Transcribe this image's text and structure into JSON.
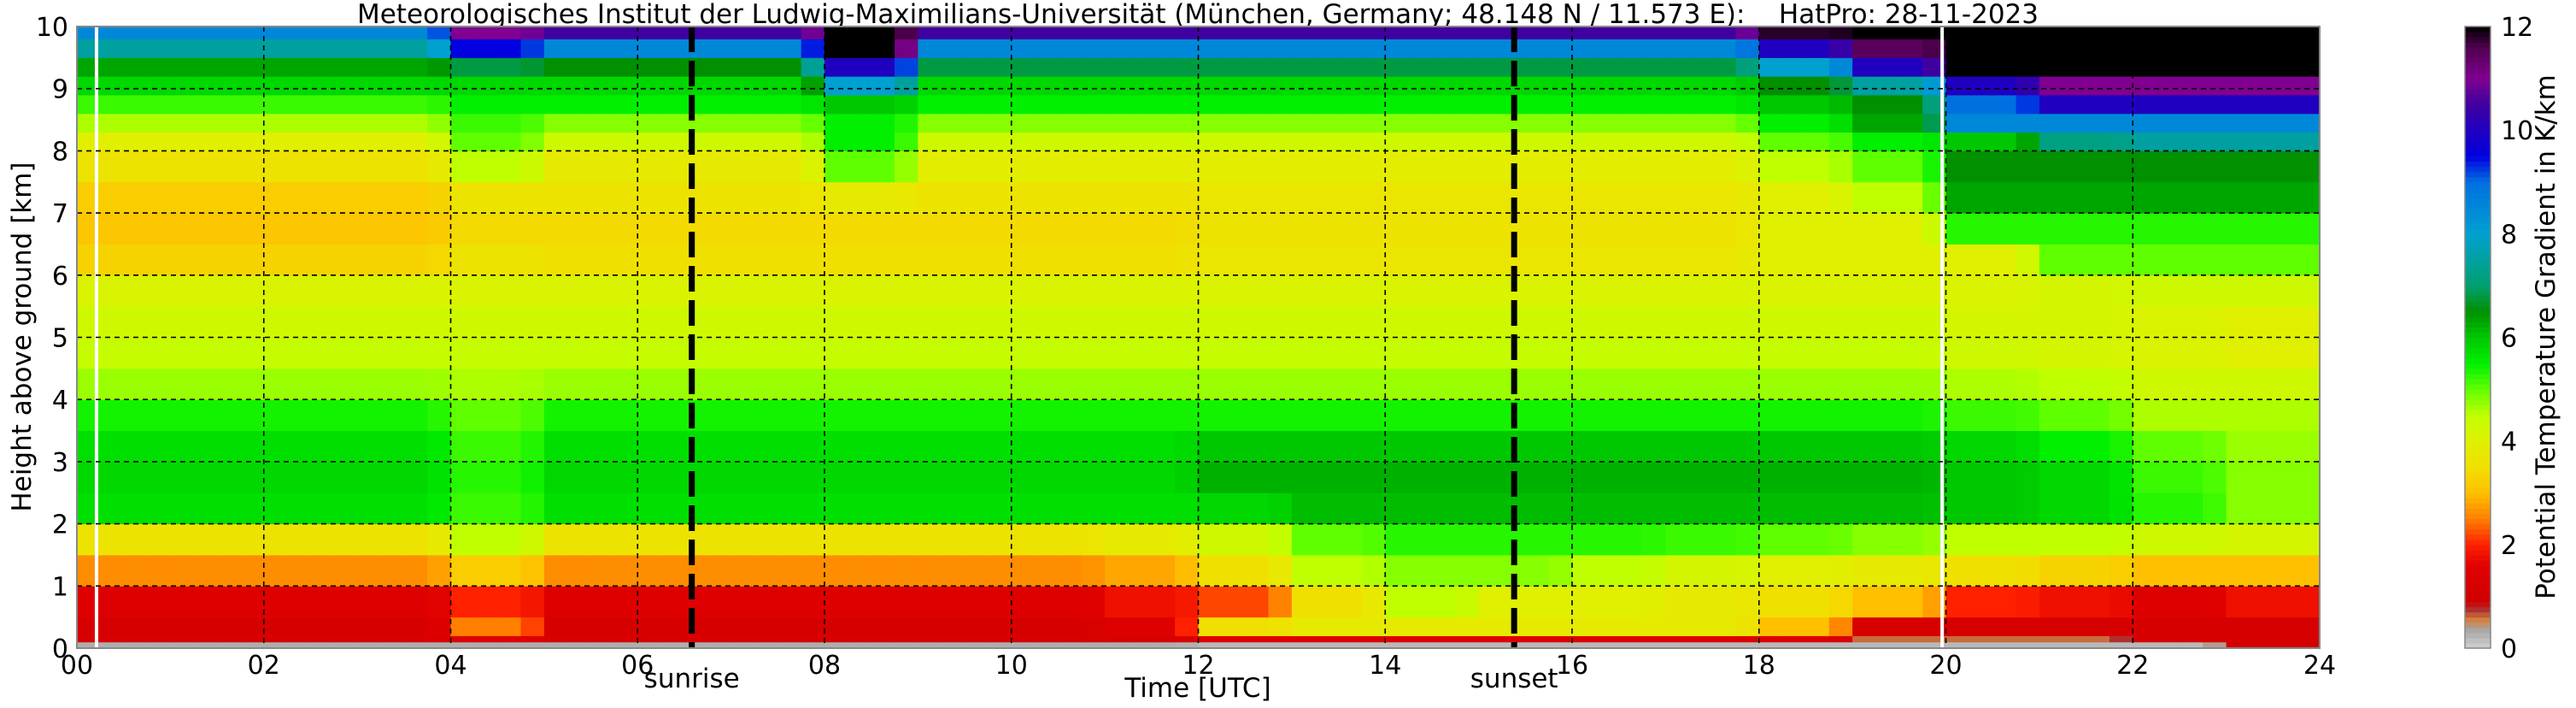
{
  "chart_data": {
    "type": "heatmap",
    "title": "Meteorologisches Institut der Ludwig-Maximilians-Universität (München, Germany; 48.148 N / 11.573 E):    HatPro: 28-11-2023",
    "xlabel": "Time [UTC]",
    "ylabel": "Height above ground [km]",
    "colorbar_label": "Potential Temperature Gradient in K/km",
    "xlim": [
      0,
      24
    ],
    "ylim": [
      0,
      10
    ],
    "clim": [
      0,
      12
    ],
    "grid": true,
    "x_ticks": [
      "00",
      "02",
      "04",
      "06",
      "08",
      "10",
      "12",
      "14",
      "16",
      "18",
      "20",
      "22",
      "24"
    ],
    "y_ticks": [
      "0",
      "1",
      "2",
      "3",
      "4",
      "5",
      "6",
      "7",
      "8",
      "9",
      "10"
    ],
    "colorbar_ticks": [
      "0",
      "2",
      "4",
      "6",
      "8",
      "10",
      "12"
    ],
    "annotations": [
      {
        "label": "sunrise",
        "time_hours": 6.58
      },
      {
        "label": "sunset",
        "time_hours": 15.38
      }
    ],
    "data_gaps_hours": [
      0.21,
      19.96
    ],
    "x_hours": [
      0,
      1,
      2,
      3,
      4,
      5,
      6,
      7,
      8,
      9,
      10,
      11,
      12,
      13,
      14,
      15,
      16,
      17,
      18,
      19,
      20,
      21,
      22,
      23
    ],
    "height_bin_edges_km": [
      0,
      0.1,
      0.2,
      0.5,
      1.0,
      1.5,
      2.0,
      2.5,
      3.0,
      3.5,
      4.0,
      4.5,
      5.0,
      5.5,
      6.0,
      6.5,
      7.0,
      7.5,
      8.0,
      8.3,
      8.6,
      8.9,
      9.2,
      9.5,
      9.8,
      10
    ],
    "values": [
      [
        0.3,
        0.3,
        0.3,
        0.3,
        0.3,
        0.3,
        0.3,
        0.3,
        0.3,
        0.3,
        0.3,
        0.3,
        0.2,
        0.2,
        0.2,
        0.2,
        0.2,
        0.2,
        0.2,
        0.2,
        0.2,
        0.2,
        0.2,
        1.0
      ],
      [
        1.3,
        1.3,
        1.3,
        1.3,
        1.5,
        1.3,
        1.3,
        1.3,
        1.3,
        1.3,
        1.3,
        1.3,
        1.5,
        1.5,
        1.5,
        1.5,
        1.5,
        1.5,
        1.5,
        0.6,
        0.6,
        0.6,
        1.2,
        1.2
      ],
      [
        1.2,
        1.2,
        1.2,
        1.2,
        2.5,
        1.2,
        1.2,
        1.2,
        1.2,
        1.2,
        1.2,
        1.5,
        3.5,
        3.8,
        3.8,
        3.8,
        3.8,
        3.8,
        3.0,
        1.2,
        1.2,
        1.2,
        1.2,
        1.2
      ],
      [
        1.5,
        1.5,
        1.5,
        1.5,
        2.0,
        1.5,
        1.5,
        1.5,
        1.5,
        1.5,
        1.5,
        1.8,
        2.2,
        3.5,
        4.5,
        4.0,
        4.0,
        3.8,
        3.5,
        3.0,
        2.0,
        1.8,
        1.5,
        1.8
      ],
      [
        2.6,
        2.6,
        2.6,
        2.6,
        3.2,
        2.6,
        2.6,
        2.6,
        2.6,
        2.6,
        2.6,
        2.8,
        3.5,
        4.5,
        4.8,
        4.8,
        4.5,
        4.2,
        4.0,
        3.8,
        3.5,
        3.3,
        3.0,
        3.0
      ],
      [
        3.6,
        3.6,
        3.6,
        3.6,
        4.5,
        3.6,
        3.6,
        3.6,
        3.6,
        3.6,
        3.6,
        3.8,
        4.3,
        5.0,
        5.3,
        5.3,
        5.3,
        5.2,
        5.0,
        4.8,
        4.5,
        4.5,
        4.3,
        4.2
      ],
      [
        5.7,
        5.7,
        5.7,
        5.7,
        5.2,
        5.7,
        5.7,
        5.7,
        5.7,
        5.7,
        5.7,
        5.7,
        5.8,
        6.1,
        6.1,
        6.1,
        6.1,
        6.1,
        6.1,
        6.1,
        6.0,
        5.8,
        5.3,
        4.8
      ],
      [
        5.8,
        5.8,
        5.8,
        5.8,
        5.3,
        5.8,
        5.8,
        5.8,
        5.8,
        5.8,
        5.8,
        5.8,
        6.2,
        6.2,
        6.2,
        6.2,
        6.2,
        6.2,
        6.2,
        6.2,
        6.0,
        5.8,
        5.2,
        4.8
      ],
      [
        5.7,
        5.7,
        5.7,
        5.7,
        5.2,
        5.7,
        5.7,
        5.7,
        5.7,
        5.7,
        5.7,
        5.7,
        6.0,
        6.0,
        6.0,
        6.0,
        6.0,
        6.0,
        6.0,
        6.0,
        5.8,
        5.5,
        5.0,
        4.7
      ],
      [
        5.4,
        5.4,
        5.4,
        5.4,
        5.0,
        5.4,
        5.4,
        5.4,
        5.4,
        5.4,
        5.4,
        5.4,
        5.4,
        5.4,
        5.4,
        5.4,
        5.4,
        5.4,
        5.4,
        5.4,
        5.2,
        5.0,
        4.6,
        4.6
      ],
      [
        4.7,
        4.7,
        4.7,
        4.7,
        4.6,
        4.7,
        4.7,
        4.7,
        4.7,
        4.7,
        4.7,
        4.7,
        4.7,
        4.7,
        4.7,
        4.7,
        4.7,
        4.7,
        4.7,
        4.7,
        4.6,
        4.5,
        4.3,
        4.3
      ],
      [
        4.4,
        4.4,
        4.4,
        4.4,
        4.4,
        4.4,
        4.4,
        4.4,
        4.4,
        4.4,
        4.4,
        4.4,
        4.4,
        4.4,
        4.4,
        4.4,
        4.4,
        4.4,
        4.4,
        4.4,
        4.3,
        4.2,
        4.1,
        4.0
      ],
      [
        4.3,
        4.3,
        4.3,
        4.3,
        4.3,
        4.3,
        4.3,
        4.3,
        4.3,
        4.3,
        4.3,
        4.3,
        4.3,
        4.3,
        4.3,
        4.3,
        4.3,
        4.3,
        4.3,
        4.3,
        4.2,
        4.2,
        4.1,
        4.0
      ],
      [
        4.1,
        4.1,
        4.1,
        4.1,
        4.1,
        4.1,
        4.1,
        4.1,
        4.1,
        4.1,
        4.1,
        4.1,
        4.1,
        4.1,
        4.1,
        4.1,
        4.1,
        4.1,
        4.1,
        4.1,
        4.1,
        4.2,
        4.3,
        4.3
      ],
      [
        3.3,
        3.3,
        3.3,
        3.3,
        3.6,
        3.5,
        3.5,
        3.5,
        3.5,
        3.5,
        3.5,
        3.5,
        3.7,
        3.7,
        3.7,
        3.7,
        3.7,
        3.7,
        4.0,
        4.0,
        4.0,
        5.0,
        5.0,
        5.0
      ],
      [
        3.1,
        3.1,
        3.1,
        3.1,
        3.4,
        3.4,
        3.4,
        3.4,
        3.4,
        3.4,
        3.4,
        3.4,
        3.6,
        3.6,
        3.6,
        3.6,
        3.6,
        3.6,
        4.0,
        4.0,
        5.3,
        5.3,
        5.3,
        5.3
      ],
      [
        3.2,
        3.2,
        3.2,
        3.2,
        3.6,
        3.6,
        3.6,
        3.6,
        3.8,
        3.6,
        3.6,
        3.6,
        3.7,
        3.7,
        3.7,
        3.7,
        3.7,
        3.7,
        4.0,
        4.5,
        6.3,
        6.3,
        6.3,
        6.3
      ],
      [
        3.6,
        3.6,
        3.6,
        3.6,
        4.5,
        3.8,
        3.8,
        3.8,
        5.0,
        3.9,
        3.9,
        3.9,
        3.9,
        3.9,
        3.9,
        3.9,
        3.9,
        3.9,
        4.5,
        5.0,
        6.5,
        6.5,
        6.5,
        6.5
      ],
      [
        4.0,
        4.0,
        4.0,
        4.0,
        5.0,
        4.3,
        4.3,
        4.3,
        5.5,
        4.3,
        4.3,
        4.3,
        4.3,
        4.3,
        4.3,
        4.3,
        4.3,
        4.3,
        5.0,
        5.5,
        6.0,
        7.2,
        7.5,
        7.5
      ],
      [
        4.6,
        4.6,
        4.6,
        4.6,
        5.2,
        4.8,
        4.8,
        4.8,
        5.5,
        4.8,
        4.8,
        4.8,
        4.8,
        4.8,
        4.8,
        4.8,
        4.8,
        4.8,
        5.5,
        6.3,
        8.5,
        8.5,
        8.5,
        8.5
      ],
      [
        5.2,
        5.2,
        5.2,
        5.2,
        5.5,
        5.5,
        5.5,
        5.5,
        6.0,
        5.5,
        5.5,
        5.5,
        5.5,
        5.5,
        5.5,
        5.5,
        5.5,
        5.5,
        6.0,
        6.5,
        9.0,
        10.0,
        10.0,
        10.0
      ],
      [
        5.8,
        5.8,
        5.8,
        5.8,
        5.8,
        5.8,
        5.8,
        5.8,
        8.0,
        5.8,
        5.8,
        5.8,
        5.8,
        5.8,
        5.8,
        5.8,
        5.8,
        5.8,
        6.5,
        7.5,
        10.0,
        11.0,
        11.0,
        11.0
      ],
      [
        6.3,
        6.3,
        6.3,
        6.3,
        6.8,
        6.5,
        6.5,
        6.5,
        10.0,
        6.8,
        6.8,
        6.8,
        6.8,
        6.8,
        6.8,
        6.8,
        6.8,
        6.8,
        8.0,
        10.0,
        12.0,
        12.0,
        12.0,
        12.0
      ],
      [
        7.5,
        7.5,
        7.5,
        7.5,
        9.5,
        8.5,
        8.5,
        8.5,
        12.0,
        8.5,
        8.5,
        8.5,
        8.5,
        8.5,
        8.5,
        8.5,
        8.5,
        8.5,
        10.0,
        11.5,
        12.0,
        12.0,
        12.0,
        12.0
      ],
      [
        8.5,
        8.5,
        8.5,
        8.5,
        11.0,
        10.5,
        10.5,
        10.5,
        12.0,
        10.5,
        10.5,
        10.5,
        10.5,
        10.5,
        10.5,
        10.5,
        10.5,
        10.5,
        11.8,
        12.0,
        12.0,
        12.0,
        12.0,
        12.0
      ]
    ],
    "colormap": [
      [
        0,
        "#d0d0d0"
      ],
      [
        0.35,
        "#a8a8a8"
      ],
      [
        0.55,
        "#d08040"
      ],
      [
        0.75,
        "#b03030"
      ],
      [
        0.9,
        "#d00000"
      ],
      [
        1.6,
        "#e00000"
      ],
      [
        2.0,
        "#ff2000"
      ],
      [
        2.5,
        "#ff8000"
      ],
      [
        3.0,
        "#ffc000"
      ],
      [
        3.5,
        "#f0e000"
      ],
      [
        4.0,
        "#e0f000"
      ],
      [
        4.5,
        "#c0ff00"
      ],
      [
        5.0,
        "#60ff00"
      ],
      [
        5.5,
        "#00f000"
      ],
      [
        6.0,
        "#00c800"
      ],
      [
        6.5,
        "#009000"
      ],
      [
        7.0,
        "#00a070"
      ],
      [
        7.5,
        "#00a0a0"
      ],
      [
        8.0,
        "#00a0d0"
      ],
      [
        9.0,
        "#0070e0"
      ],
      [
        9.5,
        "#0000e0"
      ],
      [
        10.5,
        "#4000a0"
      ],
      [
        11.0,
        "#800090"
      ],
      [
        11.6,
        "#500050"
      ],
      [
        12.0,
        "#000000"
      ]
    ]
  }
}
